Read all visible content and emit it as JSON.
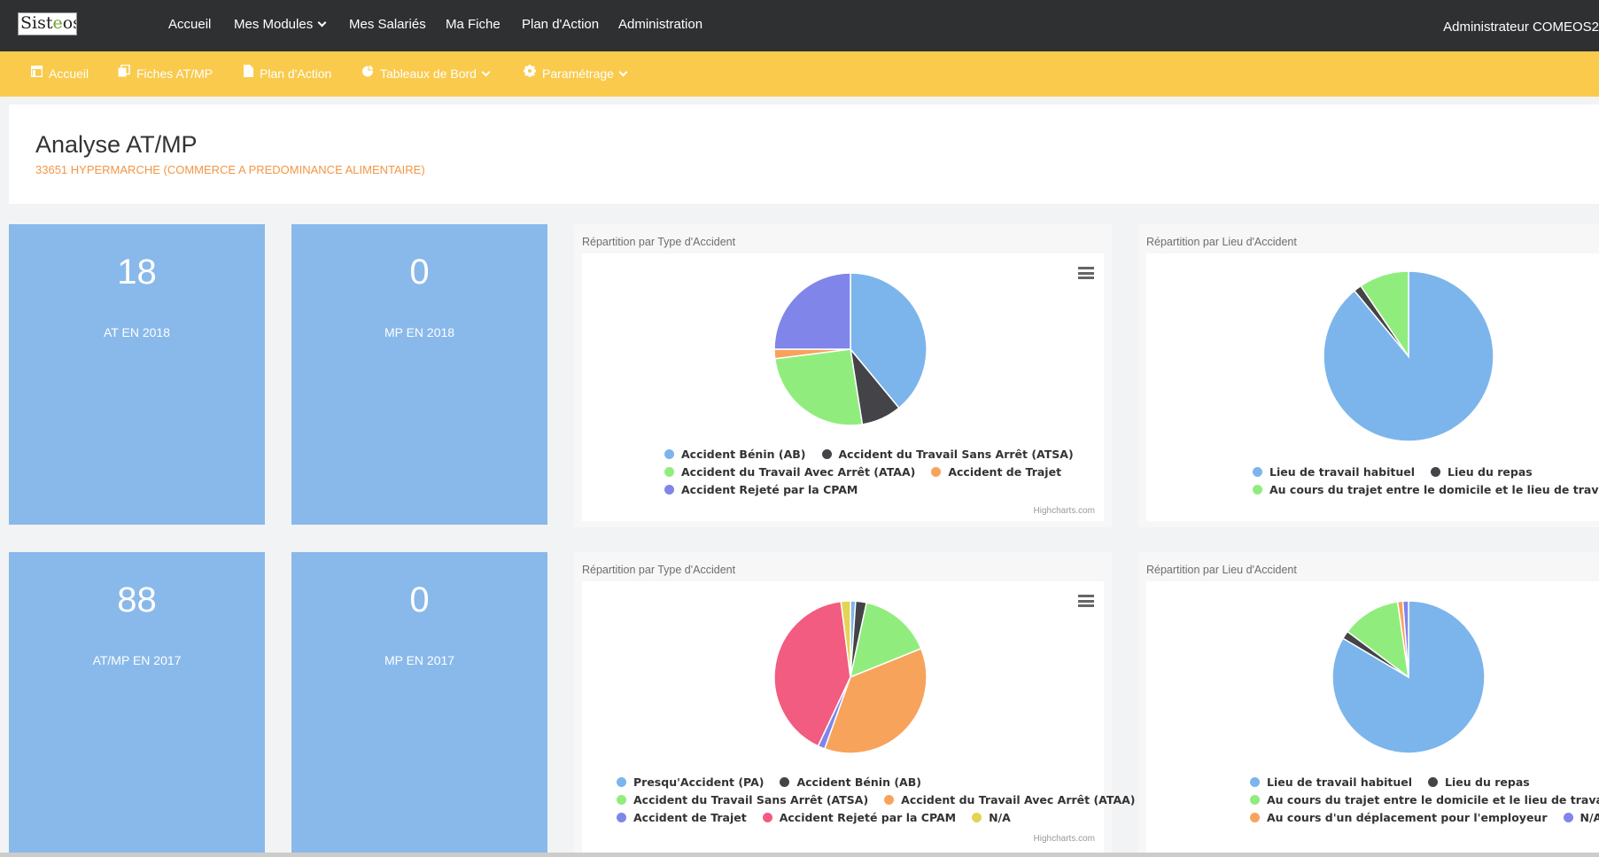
{
  "logo": {
    "text_a": "Sist",
    "text_b": "e",
    "text_c": "os"
  },
  "topnav": {
    "accueil": "Accueil",
    "modules": "Mes Modules",
    "salaries": "Mes Salariés",
    "fiche": "Ma Fiche",
    "plan": "Plan d'Action",
    "admin": "Administration"
  },
  "user": "Administrateur COMEOS2",
  "subnav": {
    "accueil": "Accueil",
    "fiches": "Fiches AT/MP",
    "plan": "Plan d'Action",
    "tableaux": "Tableaux de Bord",
    "parametrage": "Paramétrage"
  },
  "header": {
    "title": "Analyse AT/MP",
    "subtitle": "33651 HYPERMARCHE (COMMERCE A PREDOMINANCE ALIMENTAIRE)"
  },
  "stats": [
    {
      "value": "18",
      "label": "AT EN 2018"
    },
    {
      "value": "0",
      "label": "MP EN 2018"
    },
    {
      "value": "88",
      "label": "AT/MP EN 2017"
    },
    {
      "value": "0",
      "label": "MP EN 2017"
    }
  ],
  "credit": "Highcharts.com",
  "colors": {
    "topbar": "#2f3031",
    "subbar": "#f9ca4c",
    "stat_tile": "#89b9ea",
    "subtitle": "#f39646"
  },
  "chart_data": [
    {
      "type": "pie",
      "title": "Répartition par Type d'Accident",
      "series": [
        {
          "labels": [
            "Accident Bénin (AB)",
            "Accident du Travail Sans Arrêt (ATSA)",
            "Accident du Travail Avec Arrêt (ATAA)",
            "Accident de Trajet",
            "Accident Rejeté par la CPAM"
          ],
          "values": [
            39,
            8.5,
            25.5,
            2,
            25
          ],
          "colors": [
            "#7cb5ec",
            "#434348",
            "#90ed7d",
            "#f7a35c",
            "#8085e9"
          ]
        }
      ],
      "menu": true
    },
    {
      "type": "pie",
      "title": "Répartition par Lieu d'Accident",
      "series": [
        {
          "labels": [
            "Lieu de travail habituel",
            "Lieu du repas",
            "Au cours du trajet entre le domicile et le lieu de travail"
          ],
          "values": [
            89,
            1.5,
            9.5
          ],
          "colors": [
            "#7cb5ec",
            "#434348",
            "#90ed7d"
          ]
        }
      ],
      "menu": false
    },
    {
      "type": "pie",
      "title": "Répartition par Type d'Accident",
      "series": [
        {
          "labels": [
            "Presqu'Accident (PA)",
            "Accident Bénin (AB)",
            "Accident du Travail Sans Arrêt (ATSA)",
            "Accident du Travail Avec Arrêt (ATAA)",
            "Accident de Trajet",
            "Accident Rejeté par la CPAM",
            "N/A"
          ],
          "values": [
            1.1,
            2.3,
            15.5,
            36.6,
            1.5,
            41,
            2
          ],
          "colors": [
            "#7cb5ec",
            "#434348",
            "#90ed7d",
            "#f7a35c",
            "#8085e9",
            "#f15c80",
            "#e4d354"
          ]
        }
      ],
      "menu": true
    },
    {
      "type": "pie",
      "title": "Répartition par Lieu d'Accident",
      "series": [
        {
          "labels": [
            "Lieu de travail habituel",
            "Lieu du repas",
            "Au cours du trajet entre le domicile et le lieu de travail",
            "Au cours d'un déplacement pour l'employeur",
            "N/A"
          ],
          "values": [
            83.5,
            1.7,
            12.5,
            1.1,
            1.2
          ],
          "colors": [
            "#7cb5ec",
            "#434348",
            "#90ed7d",
            "#f7a35c",
            "#8085e9"
          ]
        }
      ],
      "menu": false
    }
  ]
}
